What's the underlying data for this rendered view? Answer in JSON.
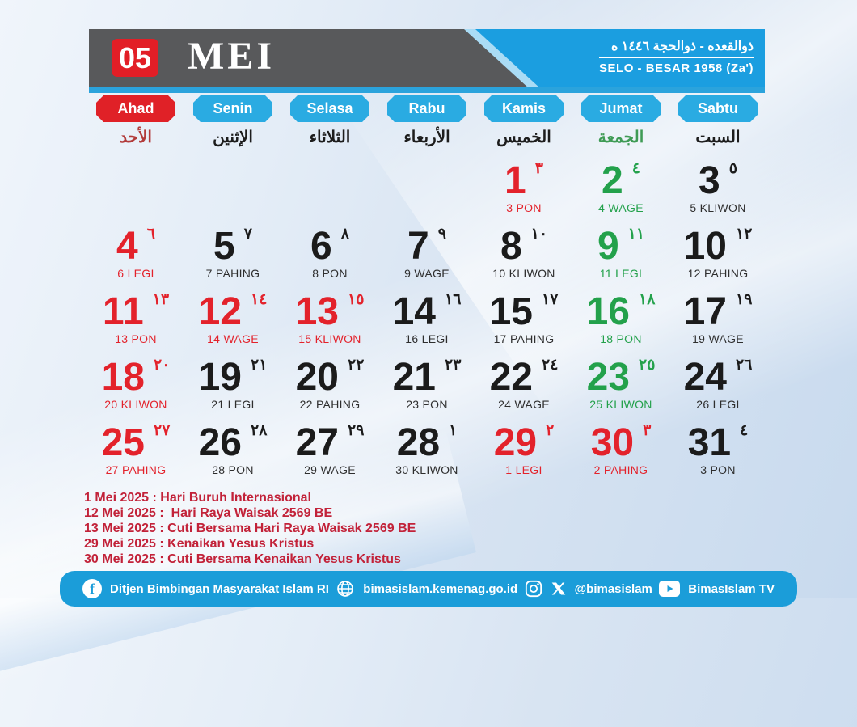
{
  "theme": {
    "red": "#e3222b",
    "green": "#23a14b",
    "black": "#1b1b1b",
    "header_gray": "#58595b",
    "header_blue": "#1b9ee0",
    "button_blue": "#2aabe2",
    "button_red": "#e02127",
    "holiday_red": "#c22239",
    "footer_blue": "#1b9dd9"
  },
  "header": {
    "month_number": "05",
    "month_name": "MEI",
    "hijri_months_arabic": "ذوالقعده - ذوالحجة ١٤٤٦ ه",
    "javanese_months": "SELO - BESAR 1958 (Za')"
  },
  "day_headers": [
    {
      "label": "Ahad",
      "arabic": "الأحد",
      "variant": "red",
      "arabic_color": "red"
    },
    {
      "label": "Senin",
      "arabic": "الإثنين",
      "variant": "blue",
      "arabic_color": "black"
    },
    {
      "label": "Selasa",
      "arabic": "الثلاثاء",
      "variant": "blue",
      "arabic_color": "black"
    },
    {
      "label": "Rabu",
      "arabic": "الأربعاء",
      "variant": "blue",
      "arabic_color": "black"
    },
    {
      "label": "Kamis",
      "arabic": "الخميس",
      "variant": "blue",
      "arabic_color": "black"
    },
    {
      "label": "Jumat",
      "arabic": "الجمعة",
      "variant": "blue",
      "arabic_color": "green"
    },
    {
      "label": "Sabtu",
      "arabic": "السبت",
      "variant": "blue",
      "arabic_color": "black"
    }
  ],
  "calendar": {
    "days": [
      {
        "date": 1,
        "col": 4,
        "row": 0,
        "color": "red",
        "hijri": "٣",
        "pasaran": "3 PON"
      },
      {
        "date": 2,
        "col": 5,
        "row": 0,
        "color": "green",
        "hijri": "٤",
        "pasaran": "4 WAGE"
      },
      {
        "date": 3,
        "col": 6,
        "row": 0,
        "color": "black",
        "hijri": "٥",
        "pasaran": "5 KLIWON"
      },
      {
        "date": 4,
        "col": 0,
        "row": 1,
        "color": "red",
        "hijri": "٦",
        "pasaran": "6 LEGI"
      },
      {
        "date": 5,
        "col": 1,
        "row": 1,
        "color": "black",
        "hijri": "٧",
        "pasaran": "7 PAHING"
      },
      {
        "date": 6,
        "col": 2,
        "row": 1,
        "color": "black",
        "hijri": "٨",
        "pasaran": "8 PON"
      },
      {
        "date": 7,
        "col": 3,
        "row": 1,
        "color": "black",
        "hijri": "٩",
        "pasaran": "9 WAGE"
      },
      {
        "date": 8,
        "col": 4,
        "row": 1,
        "color": "black",
        "hijri": "١٠",
        "pasaran": "10 KLIWON"
      },
      {
        "date": 9,
        "col": 5,
        "row": 1,
        "color": "green",
        "hijri": "١١",
        "pasaran": "11 LEGI"
      },
      {
        "date": 10,
        "col": 6,
        "row": 1,
        "color": "black",
        "hijri": "١٢",
        "pasaran": "12 PAHING"
      },
      {
        "date": 11,
        "col": 0,
        "row": 2,
        "color": "red",
        "hijri": "١٣",
        "pasaran": "13 PON"
      },
      {
        "date": 12,
        "col": 1,
        "row": 2,
        "color": "red",
        "hijri": "١٤",
        "pasaran": "14 WAGE"
      },
      {
        "date": 13,
        "col": 2,
        "row": 2,
        "color": "red",
        "hijri": "١٥",
        "pasaran": "15 KLIWON"
      },
      {
        "date": 14,
        "col": 3,
        "row": 2,
        "color": "black",
        "hijri": "١٦",
        "pasaran": "16 LEGI"
      },
      {
        "date": 15,
        "col": 4,
        "row": 2,
        "color": "black",
        "hijri": "١٧",
        "pasaran": "17 PAHING"
      },
      {
        "date": 16,
        "col": 5,
        "row": 2,
        "color": "green",
        "hijri": "١٨",
        "pasaran": "18 PON"
      },
      {
        "date": 17,
        "col": 6,
        "row": 2,
        "color": "black",
        "hijri": "١٩",
        "pasaran": "19 WAGE"
      },
      {
        "date": 18,
        "col": 0,
        "row": 3,
        "color": "red",
        "hijri": "٢٠",
        "pasaran": "20 KLIWON"
      },
      {
        "date": 19,
        "col": 1,
        "row": 3,
        "color": "black",
        "hijri": "٢١",
        "pasaran": "21 LEGI"
      },
      {
        "date": 20,
        "col": 2,
        "row": 3,
        "color": "black",
        "hijri": "٢٢",
        "pasaran": "22 PAHING"
      },
      {
        "date": 21,
        "col": 3,
        "row": 3,
        "color": "black",
        "hijri": "٢٣",
        "pasaran": "23 PON"
      },
      {
        "date": 22,
        "col": 4,
        "row": 3,
        "color": "black",
        "hijri": "٢٤",
        "pasaran": "24 WAGE"
      },
      {
        "date": 23,
        "col": 5,
        "row": 3,
        "color": "green",
        "hijri": "٢٥",
        "pasaran": "25 KLIWON"
      },
      {
        "date": 24,
        "col": 6,
        "row": 3,
        "color": "black",
        "hijri": "٢٦",
        "pasaran": "26 LEGI"
      },
      {
        "date": 25,
        "col": 0,
        "row": 4,
        "color": "red",
        "hijri": "٢٧",
        "pasaran": "27 PAHING"
      },
      {
        "date": 26,
        "col": 1,
        "row": 4,
        "color": "black",
        "hijri": "٢٨",
        "pasaran": "28 PON"
      },
      {
        "date": 27,
        "col": 2,
        "row": 4,
        "color": "black",
        "hijri": "٢٩",
        "pasaran": "29 WAGE"
      },
      {
        "date": 28,
        "col": 3,
        "row": 4,
        "color": "black",
        "hijri": "١",
        "pasaran": "30 KLIWON"
      },
      {
        "date": 29,
        "col": 4,
        "row": 4,
        "color": "red",
        "hijri": "٢",
        "pasaran": "1 LEGI"
      },
      {
        "date": 30,
        "col": 5,
        "row": 4,
        "color": "red",
        "hijri": "٣",
        "pasaran": "2 PAHING"
      },
      {
        "date": 31,
        "col": 6,
        "row": 4,
        "color": "black",
        "hijri": "٤",
        "pasaran": "3 PON"
      }
    ]
  },
  "holidays": [
    "1 Mei 2025 : Hari Buruh Internasional",
    "12 Mei 2025 :  Hari Raya Waisak 2569 BE",
    "13 Mei 2025 : Cuti Bersama Hari Raya Waisak 2569 BE",
    "29 Mei 2025 : Kenaikan Yesus Kristus",
    "30 Mei 2025 : Cuti Bersama Kenaikan Yesus Kristus"
  ],
  "footer": {
    "facebook": "Ditjen Bimbingan Masyarakat Islam RI",
    "website": "bimasislam.kemenag.go.id",
    "social_handle": "@bimasislam",
    "youtube": "BimasIslam TV"
  }
}
